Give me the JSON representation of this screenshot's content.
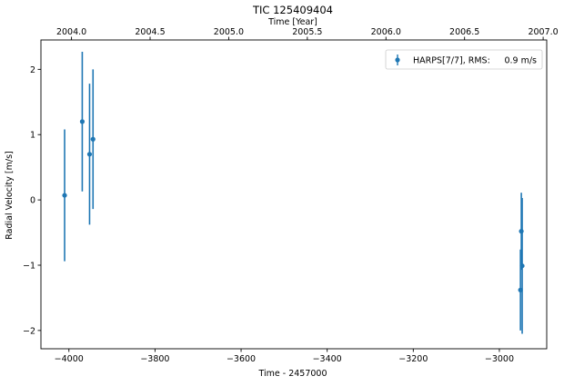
{
  "chart_data": {
    "type": "scatter",
    "title": "TIC 125409404",
    "xlabel": "Time - 2457000",
    "ylabel": "Radial Velocity [m/s]",
    "top_xlabel": "Time [Year]",
    "xlim": [
      -4065,
      -2890
    ],
    "ylim": [
      -2.28,
      2.45
    ],
    "xticks": [
      -4000,
      -3800,
      -3600,
      -3400,
      -3200,
      -3000
    ],
    "xtick_labels": [
      "−4000",
      "−3800",
      "−3600",
      "−3400",
      "−3200",
      "−3000"
    ],
    "yticks": [
      -2,
      -1,
      0,
      1,
      2
    ],
    "ytick_labels": [
      "−2",
      "−1",
      "0",
      "1",
      "2"
    ],
    "top_xticks": [
      2004.0,
      2004.5,
      2005.0,
      2005.5,
      2006.0,
      2006.5,
      2007.0
    ],
    "top_xtick_labels": [
      "2004.0",
      "2004.5",
      "2005.0",
      "2005.5",
      "2006.0",
      "2006.5",
      "2007.0"
    ],
    "grid": false,
    "legend_position": "top-right",
    "series": [
      {
        "name": "HARPS[7/7], RMS:",
        "rms": "0.9 m/s",
        "color": "#1f77b4",
        "x": [
          -4010,
          -3969,
          -3952,
          -3944,
          -2951,
          -2949,
          -2947
        ],
        "y": [
          0.07,
          1.2,
          0.7,
          0.93,
          -1.38,
          -0.48,
          -1.01
        ],
        "yerr": [
          1.01,
          1.07,
          1.08,
          1.07,
          0.62,
          0.59,
          1.04
        ]
      }
    ]
  }
}
